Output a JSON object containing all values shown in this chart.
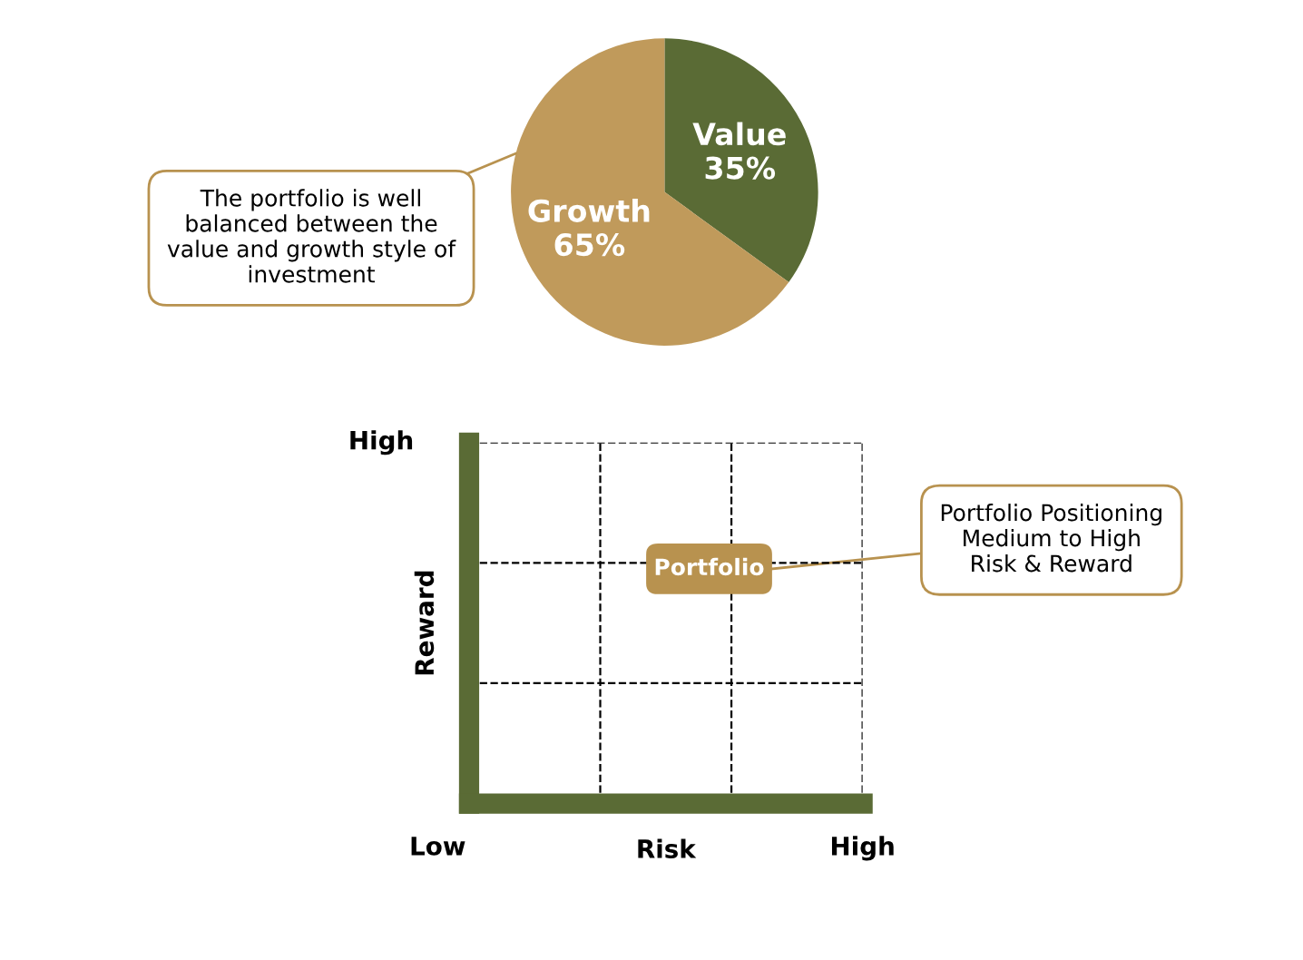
{
  "chart_data": [
    {
      "type": "pie",
      "categories": [
        "Value",
        "Growth"
      ],
      "values": [
        35,
        65
      ],
      "colors": [
        "#5a6b35",
        "#c09a5b"
      ],
      "value_labels": [
        "35%",
        "65%"
      ],
      "annotations": [
        "The portfolio is well\nbalanced between the\nvalue and growth style of\ninvestment"
      ]
    },
    {
      "type": "other",
      "xlabel": "Risk",
      "ylabel": "Reward",
      "annotations": [
        "High",
        "Low",
        "High",
        "Portfolio",
        "Portfolio Positioning\nMedium to High\nRisk & Reward"
      ]
    }
  ]
}
